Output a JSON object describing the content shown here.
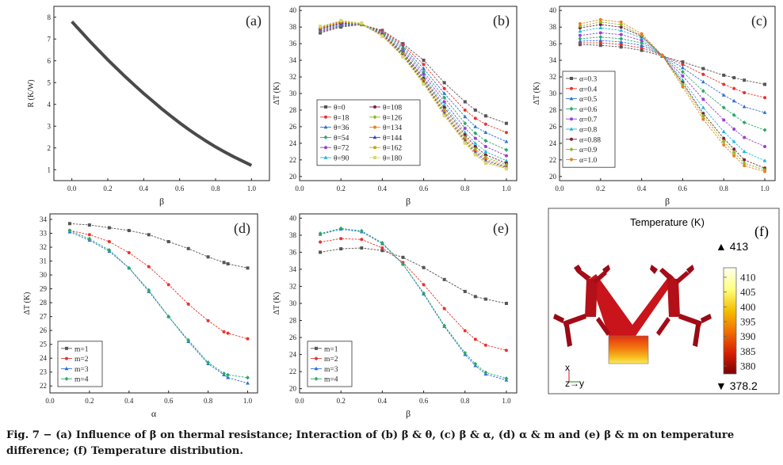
{
  "caption": {
    "label": "Fig. 7 −",
    "text": "(a) Influence of β on thermal resistance; Interaction of (b) β & θ, (c) β & α, (d) α & m and (e) β & m on temperature difference; (f) Temperature distribution."
  },
  "colors": {
    "s0": "#555555",
    "s1": "#e8322a",
    "s2": "#2a6fd8",
    "s3": "#2aa86a",
    "s4": "#9b3fd0",
    "s5": "#1fb8d8",
    "s6": "#7a1f3a",
    "s7": "#8ab820",
    "s8": "#e8801f",
    "s9": "#4040c8",
    "s10": "#c8a800",
    "s11": "#d8d870"
  },
  "chart_data": [
    {
      "id": "a",
      "type": "line",
      "panel_label": "(a)",
      "xlabel": "β",
      "ylabel": "R (K/W)",
      "xlim": [
        -0.1,
        1.1
      ],
      "ylim": [
        0.5,
        8.5
      ],
      "xticks": [
        0.0,
        0.2,
        0.4,
        0.6,
        0.8,
        1.0
      ],
      "xtick_labels": [
        "0.0",
        "0.2",
        "0.4",
        "0.6",
        "0.8",
        "1.0"
      ],
      "yticks": [
        1,
        2,
        3,
        4,
        5,
        6,
        7,
        8
      ],
      "ytick_labels": [
        "1",
        "2",
        "3",
        "4",
        "5",
        "6",
        "7",
        "8"
      ],
      "series": [
        {
          "x": [
            0.0,
            0.05,
            0.1,
            0.15,
            0.2,
            0.25,
            0.3,
            0.35,
            0.4,
            0.45,
            0.5,
            0.55,
            0.6,
            0.65,
            0.7,
            0.75,
            0.8,
            0.85,
            0.9,
            0.95,
            1.0
          ],
          "y": [
            7.8,
            7.35,
            6.9,
            6.47,
            6.05,
            5.65,
            5.25,
            4.87,
            4.5,
            4.15,
            3.8,
            3.47,
            3.15,
            2.85,
            2.57,
            2.3,
            2.05,
            1.82,
            1.6,
            1.4,
            1.2
          ]
        }
      ]
    },
    {
      "id": "b",
      "type": "line",
      "panel_label": "(b)",
      "xlabel": "β",
      "ylabel": "ΔT (K)",
      "xlim": [
        0.0,
        1.05
      ],
      "ylim": [
        19.5,
        40.5
      ],
      "xticks": [
        0.0,
        0.2,
        0.4,
        0.6,
        0.8,
        1.0
      ],
      "xtick_labels": [
        "0.0",
        "0.2",
        "0.4",
        "0.6",
        "0.8",
        "1.0"
      ],
      "yticks": [
        20,
        22,
        24,
        26,
        28,
        30,
        32,
        34,
        36,
        38,
        40
      ],
      "ytick_labels": [
        "20",
        "22",
        "24",
        "26",
        "28",
        "30",
        "32",
        "34",
        "36",
        "38",
        "40"
      ],
      "x": [
        0.1,
        0.2,
        0.3,
        0.4,
        0.5,
        0.6,
        0.7,
        0.8,
        0.85,
        0.9,
        1.0
      ],
      "series": [
        {
          "name": "θ=0",
          "y": [
            37.3,
            38.0,
            38.3,
            37.6,
            36.0,
            34.0,
            31.3,
            29.0,
            28.0,
            27.3,
            26.4
          ]
        },
        {
          "name": "θ=18",
          "y": [
            37.4,
            38.1,
            38.3,
            37.5,
            35.8,
            33.5,
            30.6,
            28.0,
            27.0,
            26.3,
            25.3
          ]
        },
        {
          "name": "θ=36",
          "y": [
            37.5,
            38.2,
            38.3,
            37.4,
            35.6,
            33.0,
            30.0,
            27.2,
            26.0,
            25.3,
            24.2
          ]
        },
        {
          "name": "θ=54",
          "y": [
            37.6,
            38.3,
            38.3,
            37.3,
            35.4,
            32.6,
            29.5,
            26.4,
            25.2,
            24.3,
            23.2
          ]
        },
        {
          "name": "θ=72",
          "y": [
            37.7,
            38.4,
            38.3,
            37.2,
            35.2,
            32.3,
            29.0,
            25.8,
            24.6,
            23.6,
            22.5
          ]
        },
        {
          "name": "θ=90",
          "y": [
            37.8,
            38.5,
            38.3,
            37.1,
            35.0,
            32.0,
            28.6,
            25.3,
            24.0,
            23.0,
            21.9
          ]
        },
        {
          "name": "θ=108",
          "y": [
            37.8,
            38.5,
            38.3,
            37.1,
            34.9,
            31.8,
            28.3,
            25.0,
            23.6,
            22.6,
            21.6
          ]
        },
        {
          "name": "θ=126",
          "y": [
            37.9,
            38.6,
            38.3,
            37.0,
            34.8,
            31.6,
            28.0,
            24.7,
            23.3,
            22.3,
            21.4
          ]
        },
        {
          "name": "θ=134",
          "y": [
            37.9,
            38.6,
            38.4,
            37.0,
            34.7,
            31.5,
            27.8,
            24.5,
            23.1,
            22.1,
            21.2
          ]
        },
        {
          "name": "θ=144",
          "y": [
            38.0,
            38.7,
            38.4,
            36.9,
            34.6,
            31.4,
            27.6,
            24.3,
            22.9,
            21.9,
            21.1
          ]
        },
        {
          "name": "θ=162",
          "y": [
            38.0,
            38.7,
            38.4,
            36.9,
            34.5,
            31.2,
            27.4,
            24.1,
            22.7,
            21.7,
            21.0
          ]
        },
        {
          "name": "θ=180",
          "y": [
            38.1,
            38.8,
            38.5,
            36.9,
            34.4,
            31.1,
            27.3,
            24.0,
            22.6,
            21.6,
            20.9
          ]
        }
      ],
      "legend_placement": "middle-left, two columns"
    },
    {
      "id": "c",
      "type": "line",
      "panel_label": "(c)",
      "xlabel": "β",
      "ylabel": "ΔT (K)",
      "xlim": [
        0.0,
        1.05
      ],
      "ylim": [
        19.5,
        40.5
      ],
      "xticks": [
        0.0,
        0.2,
        0.4,
        0.6,
        0.8,
        1.0
      ],
      "xtick_labels": [
        "0.0",
        "0.2",
        "0.4",
        "0.6",
        "0.8",
        "1.0"
      ],
      "yticks": [
        20,
        22,
        24,
        26,
        28,
        30,
        32,
        34,
        36,
        38,
        40
      ],
      "ytick_labels": [
        "20",
        "22",
        "24",
        "26",
        "28",
        "30",
        "32",
        "34",
        "36",
        "38",
        "40"
      ],
      "x": [
        0.1,
        0.2,
        0.3,
        0.4,
        0.5,
        0.6,
        0.7,
        0.8,
        0.85,
        0.9,
        1.0
      ],
      "series": [
        {
          "name": "α=0.3",
          "y": [
            35.9,
            35.8,
            35.6,
            35.2,
            34.5,
            33.8,
            33.0,
            32.2,
            31.9,
            31.6,
            31.1
          ]
        },
        {
          "name": "α=0.4",
          "y": [
            36.1,
            36.1,
            35.9,
            35.5,
            34.6,
            33.5,
            32.3,
            31.1,
            30.6,
            30.1,
            29.5
          ]
        },
        {
          "name": "α=0.5",
          "y": [
            36.3,
            36.4,
            36.2,
            35.8,
            34.6,
            33.1,
            31.4,
            29.8,
            29.1,
            28.4,
            27.7
          ]
        },
        {
          "name": "α=0.6",
          "y": [
            36.6,
            36.8,
            36.6,
            36.1,
            34.6,
            32.6,
            30.3,
            28.3,
            27.4,
            26.5,
            25.6
          ]
        },
        {
          "name": "α=0.7",
          "y": [
            37.0,
            37.3,
            37.1,
            36.4,
            34.6,
            32.1,
            29.3,
            26.8,
            25.7,
            24.7,
            23.6
          ]
        },
        {
          "name": "α=0.8",
          "y": [
            37.5,
            37.9,
            37.6,
            36.7,
            34.6,
            31.6,
            28.3,
            25.4,
            24.2,
            23.0,
            21.9
          ]
        },
        {
          "name": "α=0.88",
          "y": [
            37.9,
            38.3,
            38.0,
            36.9,
            34.6,
            31.3,
            27.6,
            24.6,
            23.3,
            22.0,
            21.0
          ]
        },
        {
          "name": "α=0.9",
          "y": [
            38.1,
            38.6,
            38.3,
            37.0,
            34.6,
            31.1,
            27.3,
            24.2,
            22.9,
            21.6,
            20.8
          ]
        },
        {
          "name": "α=1.0",
          "y": [
            38.4,
            38.9,
            38.6,
            37.2,
            34.6,
            30.8,
            26.9,
            23.8,
            22.5,
            21.3,
            20.6
          ]
        }
      ],
      "legend_placement": "middle-left"
    },
    {
      "id": "d",
      "type": "line",
      "panel_label": "(d)",
      "xlabel": "α",
      "ylabel": "ΔT (K)",
      "xlim": [
        0.0,
        1.05
      ],
      "ylim": [
        21.5,
        34.4
      ],
      "xticks": [
        0.0,
        0.2,
        0.4,
        0.6,
        0.8,
        1.0
      ],
      "xtick_labels": [
        "0.0",
        "0.2",
        "0.4",
        "0.6",
        "0.8",
        "1.0"
      ],
      "yticks": [
        22,
        23,
        24,
        25,
        26,
        27,
        28,
        29,
        30,
        31,
        32,
        33,
        34
      ],
      "ytick_labels": [
        "22",
        "23",
        "24",
        "25",
        "26",
        "27",
        "28",
        "29",
        "30",
        "31",
        "32",
        "33",
        "34"
      ],
      "x": [
        0.1,
        0.2,
        0.3,
        0.4,
        0.5,
        0.6,
        0.7,
        0.8,
        0.88,
        0.9,
        1.0
      ],
      "series": [
        {
          "name": "m=1",
          "y": [
            33.7,
            33.6,
            33.4,
            33.2,
            32.9,
            32.4,
            31.9,
            31.3,
            30.9,
            30.8,
            30.5
          ]
        },
        {
          "name": "m=2",
          "y": [
            33.2,
            32.9,
            32.4,
            31.6,
            30.6,
            29.3,
            27.9,
            26.7,
            25.9,
            25.8,
            25.4
          ]
        },
        {
          "name": "m=3",
          "y": [
            33.1,
            32.5,
            31.7,
            30.5,
            28.8,
            27.0,
            25.2,
            23.6,
            22.8,
            22.6,
            22.2
          ]
        },
        {
          "name": "m=4",
          "y": [
            33.2,
            32.6,
            31.8,
            30.5,
            28.9,
            27.0,
            25.3,
            23.7,
            22.9,
            22.8,
            22.6
          ]
        }
      ],
      "legend_placement": "bottom-left"
    },
    {
      "id": "e",
      "type": "line",
      "panel_label": "(e)",
      "xlabel": "β",
      "ylabel": "ΔT (K)",
      "xlim": [
        0.0,
        1.05
      ],
      "ylim": [
        19.5,
        40.5
      ],
      "xticks": [
        0.0,
        0.2,
        0.4,
        0.6,
        0.8,
        1.0
      ],
      "xtick_labels": [
        "0.0",
        "0.2",
        "0.4",
        "0.6",
        "0.8",
        "1.0"
      ],
      "yticks": [
        20,
        22,
        24,
        26,
        28,
        30,
        32,
        34,
        36,
        38,
        40
      ],
      "ytick_labels": [
        "20",
        "22",
        "24",
        "26",
        "28",
        "30",
        "32",
        "34",
        "36",
        "38",
        "40"
      ],
      "x": [
        0.1,
        0.2,
        0.3,
        0.4,
        0.5,
        0.6,
        0.7,
        0.8,
        0.85,
        0.9,
        1.0
      ],
      "series": [
        {
          "name": "m=1",
          "y": [
            36.0,
            36.4,
            36.5,
            36.2,
            35.4,
            34.2,
            32.8,
            31.4,
            30.8,
            30.5,
            30.0
          ]
        },
        {
          "name": "m=2",
          "y": [
            37.2,
            37.6,
            37.5,
            36.5,
            34.8,
            32.2,
            29.4,
            26.8,
            25.8,
            25.1,
            24.5
          ]
        },
        {
          "name": "m=3",
          "y": [
            38.1,
            38.7,
            38.4,
            37.0,
            34.6,
            31.1,
            27.3,
            24.0,
            22.7,
            21.7,
            21.0
          ]
        },
        {
          "name": "m=4",
          "y": [
            38.2,
            38.8,
            38.5,
            37.1,
            34.6,
            31.2,
            27.4,
            24.2,
            22.9,
            21.9,
            21.2
          ]
        }
      ],
      "legend_placement": "bottom-left"
    }
  ],
  "panel_f": {
    "panel_label": "(f)",
    "title": "Temperature (K)",
    "max_label": "▲ 413",
    "min_label": "▼ 378.2",
    "colorbar_ticks": [
      "410",
      "405",
      "400",
      "395",
      "390",
      "385",
      "380"
    ],
    "axis_x": "x",
    "axis_zy": "z→y"
  }
}
